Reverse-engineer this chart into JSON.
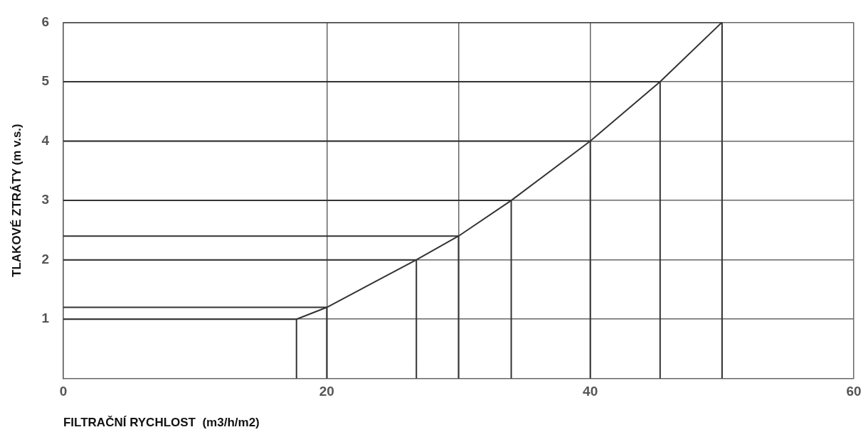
{
  "chart_data": {
    "type": "line",
    "xlabel": "FILTRAČNÍ RYCHLOST  (m3/h/m2)",
    "ylabel": "TLAKOVÉ ZTRÁTY (m v.s.)",
    "series": [
      {
        "color": "#333333",
        "x": [
          17.7,
          20,
          26.8,
          30,
          34,
          40,
          45.3,
          50
        ],
        "values": [
          1,
          1.2,
          2,
          2.4,
          3,
          4,
          5,
          6
        ]
      },
      {
        "color": "#333333",
        "x": [
          0,
          17.7,
          17.7
        ],
        "values": [
          1,
          1,
          0
        ]
      },
      {
        "color": "#333333",
        "x": [
          0,
          20,
          20
        ],
        "values": [
          1.2,
          1.2,
          0
        ]
      },
      {
        "color": "#333333",
        "x": [
          0,
          26.8,
          26.8
        ],
        "values": [
          2,
          2,
          0
        ]
      },
      {
        "color": "#333333",
        "x": [
          0,
          30,
          30
        ],
        "values": [
          2.4,
          2.4,
          0
        ]
      },
      {
        "color": "#333333",
        "x": [
          0,
          34,
          34
        ],
        "values": [
          3,
          3,
          0
        ]
      },
      {
        "color": "#333333",
        "x": [
          0,
          40,
          40
        ],
        "values": [
          4,
          4,
          0
        ]
      },
      {
        "color": "#333333",
        "x": [
          0,
          45.3,
          45.3
        ],
        "values": [
          5,
          5,
          0
        ]
      },
      {
        "color": "#333333",
        "x": [
          0,
          50,
          50
        ],
        "values": [
          6,
          6,
          0
        ]
      }
    ],
    "xlim": [
      0,
      60
    ],
    "xticks": [
      0,
      20,
      {
        "value": 30,
        "label": null
      },
      40,
      {
        "value": 50,
        "label": null
      },
      60
    ],
    "ylim": [
      0,
      6
    ],
    "yticks": [
      1,
      2,
      3,
      4,
      5,
      6
    ],
    "grid": true,
    "legend": false,
    "marker": "none"
  }
}
